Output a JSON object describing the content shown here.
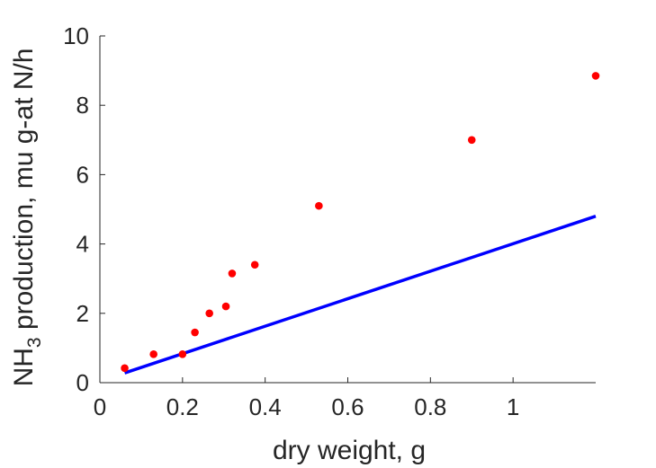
{
  "chart_data": {
    "type": "scatter",
    "title": "",
    "xlabel": "dry weight, g",
    "ylabel": {
      "main": "NH",
      "subscript": "3",
      "rest": " production, mu g-at N/h"
    },
    "xlim": [
      0,
      1.2
    ],
    "ylim": [
      0,
      10
    ],
    "xticks": [
      {
        "value": 0,
        "label": "0"
      },
      {
        "value": 0.2,
        "label": "0.2"
      },
      {
        "value": 0.4,
        "label": "0.4"
      },
      {
        "value": 0.6,
        "label": "0.6"
      },
      {
        "value": 0.8,
        "label": "0.8"
      },
      {
        "value": 1,
        "label": "1"
      }
    ],
    "yticks": [
      {
        "value": 0,
        "label": "0"
      },
      {
        "value": 2,
        "label": "2"
      },
      {
        "value": 4,
        "label": "4"
      },
      {
        "value": 6,
        "label": "6"
      },
      {
        "value": 8,
        "label": "8"
      },
      {
        "value": 10,
        "label": "10"
      }
    ],
    "grid": false,
    "box": false,
    "series": [
      {
        "kind": "scatter",
        "color": "#ff0000",
        "x": [
          0.06,
          0.13,
          0.2,
          0.23,
          0.265,
          0.305,
          0.32,
          0.375,
          0.53,
          0.9,
          1.2
        ],
        "y": [
          0.42,
          0.82,
          0.82,
          1.45,
          2.0,
          2.2,
          3.15,
          3.4,
          5.1,
          7.0,
          8.85
        ]
      },
      {
        "kind": "line",
        "color": "#0000ff",
        "x": [
          0.06,
          1.2
        ],
        "y": [
          0.28,
          4.8
        ]
      }
    ]
  }
}
